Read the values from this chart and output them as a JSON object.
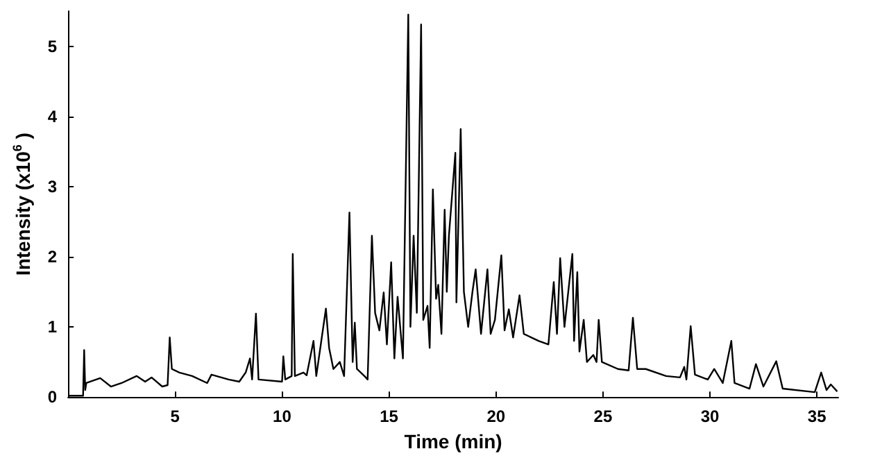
{
  "chart_data": {
    "type": "line",
    "xlabel": "Time (min)",
    "ylabel": "Intensity (x10$^{6}$ )",
    "xlim": [
      0,
      36
    ],
    "xticks": [
      5,
      10,
      15,
      20,
      25,
      30,
      35
    ],
    "ylim": [
      0,
      5.5
    ],
    "yticks": [
      0,
      1,
      2,
      3,
      4,
      5
    ],
    "grid": false,
    "marker": "none",
    "line_style": "solid",
    "series": [
      {
        "color": "#000000",
        "x": [
          0,
          0.7,
          0.75,
          0.8,
          0.85,
          1.5,
          2.0,
          2.5,
          3.2,
          3.6,
          3.9,
          4.4,
          4.65,
          4.75,
          4.85,
          5.2,
          5.8,
          6.5,
          6.7,
          7.5,
          8.0,
          8.3,
          8.5,
          8.6,
          8.78,
          8.9,
          10.0,
          10.06,
          10.15,
          10.45,
          10.5,
          10.6,
          11.0,
          11.15,
          11.47,
          11.6,
          12.05,
          12.2,
          12.4,
          12.7,
          12.9,
          13.15,
          13.3,
          13.4,
          13.5,
          13.85,
          14.0,
          14.2,
          14.35,
          14.55,
          14.75,
          14.9,
          15.1,
          15.25,
          15.4,
          15.65,
          15.9,
          16.0,
          16.15,
          16.3,
          16.5,
          16.6,
          16.8,
          16.9,
          17.05,
          17.2,
          17.3,
          17.45,
          17.6,
          17.7,
          17.8,
          18.1,
          18.15,
          18.35,
          18.5,
          18.7,
          18.9,
          19.05,
          19.3,
          19.6,
          19.75,
          19.95,
          20.25,
          20.4,
          20.6,
          20.8,
          21.1,
          21.3,
          22.0,
          22.45,
          22.7,
          22.85,
          23.0,
          23.2,
          23.57,
          23.65,
          23.8,
          23.9,
          24.1,
          24.25,
          24.55,
          24.7,
          24.8,
          24.95,
          25.7,
          26.2,
          26.4,
          26.6,
          27.0,
          27.95,
          28.6,
          28.8,
          28.9,
          29.1,
          29.3,
          29.9,
          30.2,
          30.6,
          31.0,
          31.15,
          31.85,
          32.15,
          32.5,
          33.1,
          33.4,
          34.9,
          35.2,
          35.45,
          35.65,
          35.95
        ],
        "values": [
          0.02,
          0.02,
          0.67,
          0.1,
          0.2,
          0.27,
          0.15,
          0.2,
          0.3,
          0.22,
          0.28,
          0.15,
          0.17,
          0.85,
          0.4,
          0.35,
          0.3,
          0.2,
          0.32,
          0.25,
          0.22,
          0.35,
          0.55,
          0.25,
          1.19,
          0.25,
          0.22,
          0.58,
          0.25,
          0.3,
          2.04,
          0.3,
          0.35,
          0.31,
          0.8,
          0.3,
          1.26,
          0.7,
          0.4,
          0.5,
          0.3,
          2.63,
          0.5,
          1.06,
          0.4,
          0.3,
          0.25,
          2.3,
          1.2,
          0.95,
          1.49,
          0.75,
          1.92,
          0.55,
          1.43,
          0.55,
          5.45,
          1.0,
          2.3,
          1.2,
          5.31,
          1.1,
          1.3,
          0.7,
          2.96,
          1.4,
          1.6,
          0.9,
          2.67,
          1.5,
          2.3,
          3.48,
          1.35,
          3.82,
          1.5,
          1.0,
          1.5,
          1.82,
          0.9,
          1.82,
          0.9,
          1.1,
          2.02,
          0.95,
          1.25,
          0.85,
          1.45,
          0.9,
          0.8,
          0.75,
          1.64,
          0.9,
          1.98,
          1.0,
          2.04,
          0.8,
          1.78,
          0.65,
          1.1,
          0.5,
          0.6,
          0.5,
          1.1,
          0.5,
          0.4,
          0.38,
          1.13,
          0.4,
          0.4,
          0.3,
          0.28,
          0.43,
          0.25,
          1.01,
          0.32,
          0.25,
          0.4,
          0.2,
          0.8,
          0.2,
          0.12,
          0.47,
          0.15,
          0.51,
          0.12,
          0.07,
          0.35,
          0.1,
          0.18,
          0.08
        ]
      }
    ]
  }
}
